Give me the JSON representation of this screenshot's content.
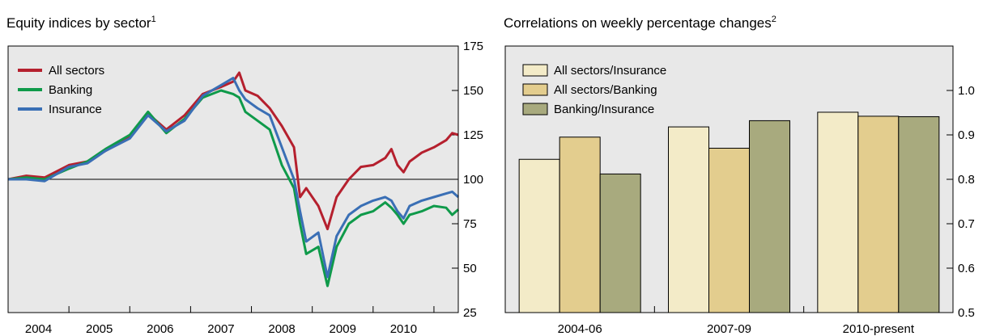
{
  "chart_data": [
    {
      "type": "line",
      "title": "Equity indices by sector",
      "title_note": "1",
      "x": [
        2004.0,
        2004.3,
        2004.6,
        2005.0,
        2005.3,
        2005.6,
        2006.0,
        2006.3,
        2006.6,
        2006.9,
        2007.2,
        2007.5,
        2007.7,
        2007.8,
        2007.9,
        2008.1,
        2008.3,
        2008.5,
        2008.7,
        2008.8,
        2008.9,
        2009.1,
        2009.25,
        2009.4,
        2009.6,
        2009.8,
        2010.0,
        2010.2,
        2010.3,
        2010.4,
        2010.5,
        2010.6,
        2010.8,
        2011.0,
        2011.2,
        2011.3,
        2011.4
      ],
      "series": [
        {
          "name": "All sectors",
          "color": "#b5202e",
          "values": [
            100,
            102,
            101,
            108,
            110,
            116,
            124,
            137,
            128,
            136,
            148,
            152,
            155,
            160,
            150,
            147,
            140,
            130,
            118,
            90,
            95,
            85,
            72,
            90,
            100,
            107,
            108,
            112,
            117,
            108,
            104,
            110,
            115,
            118,
            122,
            126,
            125
          ]
        },
        {
          "name": "Banking",
          "color": "#0f9a4a",
          "values": [
            100,
            101,
            100,
            106,
            110,
            117,
            125,
            138,
            126,
            134,
            146,
            150,
            148,
            146,
            138,
            133,
            128,
            108,
            95,
            75,
            58,
            62,
            40,
            62,
            75,
            80,
            82,
            87,
            84,
            80,
            75,
            80,
            82,
            85,
            84,
            80,
            83
          ]
        },
        {
          "name": "Insurance",
          "color": "#3a6fb5",
          "values": [
            100,
            100,
            99,
            107,
            109,
            116,
            123,
            136,
            127,
            133,
            147,
            153,
            157,
            150,
            145,
            140,
            136,
            118,
            100,
            82,
            65,
            70,
            45,
            68,
            80,
            85,
            88,
            90,
            88,
            82,
            78,
            85,
            88,
            90,
            92,
            93,
            90
          ]
        }
      ],
      "xlim": [
        2004.0,
        2011.4
      ],
      "xticks": [
        {
          "value": 2004.5,
          "label": "2004"
        },
        {
          "value": 2005.5,
          "label": "2005"
        },
        {
          "value": 2006.5,
          "label": "2006"
        },
        {
          "value": 2007.5,
          "label": "2007"
        },
        {
          "value": 2008.5,
          "label": "2008"
        },
        {
          "value": 2009.5,
          "label": "2009"
        },
        {
          "value": 2010.5,
          "label": "2010"
        }
      ],
      "xtick_marks": [
        2005,
        2006,
        2007,
        2008,
        2009,
        2010,
        2011
      ],
      "ylim": [
        25,
        175
      ],
      "yticks": [
        25,
        50,
        75,
        100,
        125,
        150,
        175
      ],
      "hline": 100,
      "legend": "top-left"
    },
    {
      "type": "bar",
      "title": "Correlations on weekly percentage changes",
      "title_note": "2",
      "categories": [
        "2004-06",
        "2007-09",
        "2010-present"
      ],
      "series": [
        {
          "name": "All sectors/Insurance",
          "color": "#f3ebc8",
          "values": [
            0.845,
            0.918,
            0.951
          ]
        },
        {
          "name": "All sectors/Banking",
          "color": "#e3cd8e",
          "values": [
            0.895,
            0.87,
            0.942
          ]
        },
        {
          "name": "Banking/Insurance",
          "color": "#a8aa7e",
          "values": [
            0.812,
            0.932,
            0.941
          ]
        }
      ],
      "ylim": [
        0.5,
        1.1
      ],
      "yticks": [
        0.5,
        0.6,
        0.7,
        0.8,
        0.9,
        {
          "value": 1.0,
          "label": "1.0"
        }
      ],
      "legend": "top-left"
    }
  ]
}
